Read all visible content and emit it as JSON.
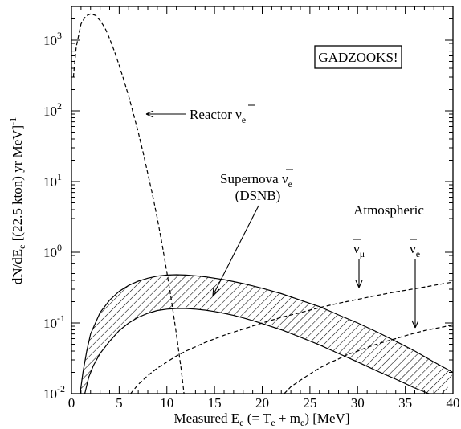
{
  "chart_data": {
    "type": "line",
    "xlabel": {
      "main": "Measured E",
      "sub_e": "e",
      "mid": " (= T",
      "sub_e2": "e",
      "plus": " + m",
      "sub_e3": "e",
      "tail": ") [MeV]"
    },
    "ylabel": {
      "main": "dN/dE",
      "sub": "e",
      "tail": "  [(22.5 kton) yr MeV]",
      "sup": "-1"
    },
    "xlim": [
      0,
      40
    ],
    "ylim": [
      0.01,
      3000
    ],
    "yscale": "log",
    "x_ticks": [
      "0",
      "5",
      "10",
      "15",
      "20",
      "25",
      "30",
      "35",
      "40"
    ],
    "y_ticks": [
      {
        "base": "10",
        "exp": "-2",
        "value": 0.01
      },
      {
        "base": "10",
        "exp": "-1",
        "value": 0.1
      },
      {
        "base": "10",
        "exp": "0",
        "value": 1
      },
      {
        "base": "10",
        "exp": "1",
        "value": 10
      },
      {
        "base": "10",
        "exp": "2",
        "value": 100
      },
      {
        "base": "10",
        "exp": "3",
        "value": 1000
      }
    ],
    "legend_box": "GADZOOKS!",
    "annotations": {
      "reactor": {
        "text": "Reactor ",
        "nu": "ν",
        "sub": "e"
      },
      "supernova": {
        "text": "Supernova ",
        "nu": "ν",
        "sub": "e",
        "line2": "(DSNB)"
      },
      "atmospheric": "Atmospheric",
      "atm_mu": {
        "nu": "ν",
        "sub": "μ"
      },
      "atm_e": {
        "nu": "ν",
        "sub": "e"
      }
    },
    "series": [
      {
        "style": "dashed",
        "x": [
          0.2,
          0.5,
          1,
          1.5,
          2,
          2.5,
          3,
          3.5,
          4,
          4.5,
          5,
          5.5,
          6,
          6.5,
          7,
          7.5,
          8,
          8.5,
          9,
          9.5,
          10,
          10.5,
          11,
          11.5,
          11.8
        ],
        "y": [
          300,
          800,
          1700,
          2200,
          2350,
          2250,
          1900,
          1500,
          1050,
          700,
          440,
          270,
          160,
          90,
          50,
          26,
          13,
          6.5,
          3,
          1.3,
          0.52,
          0.2,
          0.07,
          0.022,
          0.01
        ]
      },
      {
        "style": "solid",
        "x": [
          0.9,
          1.2,
          1.6,
          2,
          3,
          4,
          5,
          6,
          7,
          8,
          9,
          10,
          11,
          12,
          13,
          14,
          15,
          16,
          17,
          18,
          19,
          20,
          22,
          24,
          26,
          28,
          30,
          32,
          34,
          36,
          38,
          40
        ],
        "y": [
          0.01,
          0.02,
          0.04,
          0.07,
          0.14,
          0.21,
          0.28,
          0.34,
          0.39,
          0.43,
          0.46,
          0.475,
          0.48,
          0.475,
          0.465,
          0.45,
          0.43,
          0.41,
          0.385,
          0.36,
          0.335,
          0.31,
          0.26,
          0.21,
          0.17,
          0.13,
          0.1,
          0.075,
          0.055,
          0.04,
          0.028,
          0.02
        ]
      },
      {
        "style": "solid",
        "x": [
          1.4,
          1.8,
          2.3,
          3,
          4,
          5,
          6,
          7,
          8,
          9,
          10,
          11,
          12,
          13,
          14,
          15,
          16,
          17,
          18,
          19,
          20,
          22,
          24,
          26,
          28,
          30,
          32,
          34,
          36,
          37.5,
          39
        ],
        "y": [
          0.01,
          0.017,
          0.025,
          0.037,
          0.055,
          0.078,
          0.1,
          0.12,
          0.137,
          0.15,
          0.157,
          0.16,
          0.16,
          0.157,
          0.152,
          0.145,
          0.137,
          0.128,
          0.118,
          0.108,
          0.098,
          0.08,
          0.063,
          0.049,
          0.037,
          0.028,
          0.021,
          0.016,
          0.012,
          0.01,
          0.008
        ]
      },
      {
        "style": "dashed",
        "x": [
          6.2,
          7,
          8,
          9,
          10,
          11,
          12,
          14,
          16,
          18,
          20,
          22,
          24,
          26,
          28,
          30,
          32,
          34,
          36,
          38,
          40
        ],
        "y": [
          0.01,
          0.0135,
          0.018,
          0.023,
          0.028,
          0.034,
          0.04,
          0.053,
          0.067,
          0.082,
          0.1,
          0.12,
          0.14,
          0.165,
          0.19,
          0.215,
          0.245,
          0.275,
          0.305,
          0.34,
          0.38
        ]
      },
      {
        "style": "dashed",
        "x": [
          22.3,
          23,
          24,
          25,
          26,
          27,
          28,
          29,
          30,
          31,
          32,
          33,
          34,
          35,
          36,
          37,
          38,
          39,
          40
        ],
        "y": [
          0.01,
          0.0125,
          0.0155,
          0.019,
          0.023,
          0.027,
          0.031,
          0.036,
          0.04,
          0.045,
          0.05,
          0.055,
          0.06,
          0.066,
          0.072,
          0.078,
          0.083,
          0.088,
          0.095
        ]
      }
    ]
  }
}
